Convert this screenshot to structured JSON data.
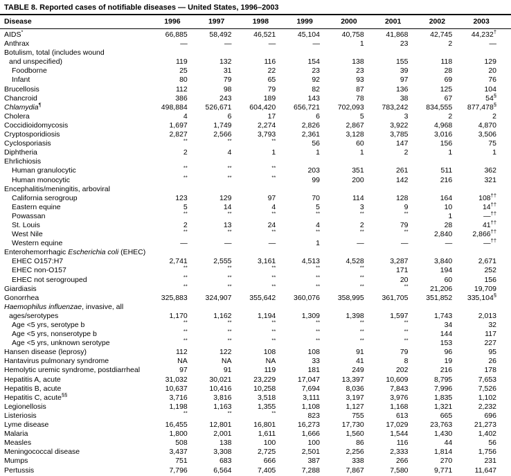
{
  "table": {
    "title": "TABLE 8. Reported cases of notifiable diseases — United States, 1996–2003",
    "columns": [
      "Disease",
      "1996",
      "1997",
      "1998",
      "1999",
      "2000",
      "2001",
      "2002",
      "2003"
    ],
    "rows": [
      {
        "label": "AIDS^*^",
        "indent": 0,
        "values": [
          "66,885",
          "58,492",
          "46,521",
          "45,104",
          "40,758",
          "41,868",
          "42,745",
          "44,232^†^"
        ]
      },
      {
        "label": "Anthrax",
        "indent": 0,
        "values": [
          "—",
          "—",
          "—",
          "—",
          "1",
          "23",
          "2",
          "—"
        ]
      },
      {
        "label": "Botulism, total (includes wound",
        "indent": 0,
        "values": []
      },
      {
        "label": "and unspecified)",
        "indent": 1,
        "values": [
          "119",
          "132",
          "116",
          "154",
          "138",
          "155",
          "118",
          "129"
        ]
      },
      {
        "label": "Foodborne",
        "indent": 2,
        "values": [
          "25",
          "31",
          "22",
          "23",
          "23",
          "39",
          "28",
          "20"
        ]
      },
      {
        "label": "Infant",
        "indent": 2,
        "values": [
          "80",
          "79",
          "65",
          "92",
          "93",
          "97",
          "69",
          "76"
        ]
      },
      {
        "label": "Brucellosis",
        "indent": 0,
        "values": [
          "112",
          "98",
          "79",
          "82",
          "87",
          "136",
          "125",
          "104"
        ]
      },
      {
        "label": "Chancroid",
        "indent": 0,
        "values": [
          "386",
          "243",
          "189",
          "143",
          "78",
          "38",
          "67",
          "54^§^"
        ]
      },
      {
        "label": "_Chlamydia_^¶^",
        "indent": 0,
        "values": [
          "498,884",
          "526,671",
          "604,420",
          "656,721",
          "702,093",
          "783,242",
          "834,555",
          "877,478^§^"
        ]
      },
      {
        "label": "Cholera",
        "indent": 0,
        "values": [
          "4",
          "6",
          "17",
          "6",
          "5",
          "3",
          "2",
          "2"
        ]
      },
      {
        "label": "Coccidioidomycosis",
        "indent": 0,
        "values": [
          "1,697",
          "1,749",
          "2,274",
          "2,826",
          "2,867",
          "3,922",
          "4,968",
          "4,870"
        ]
      },
      {
        "label": "Cryptosporidiosis",
        "indent": 0,
        "values": [
          "2,827",
          "2,566",
          "3,793",
          "2,361",
          "3,128",
          "3,785",
          "3,016",
          "3,506"
        ]
      },
      {
        "label": "Cyclosporiasis",
        "indent": 0,
        "values": [
          "^**^",
          "^**^",
          "^**^",
          "56",
          "60",
          "147",
          "156",
          "75"
        ]
      },
      {
        "label": "Diphtheria",
        "indent": 0,
        "values": [
          "2",
          "4",
          "1",
          "1",
          "1",
          "2",
          "1",
          "1"
        ]
      },
      {
        "label": "Ehrlichiosis",
        "indent": 0,
        "values": []
      },
      {
        "label": "Human granulocytic",
        "indent": 2,
        "values": [
          "^**^",
          "^**^",
          "^**^",
          "203",
          "351",
          "261",
          "511",
          "362"
        ]
      },
      {
        "label": "Human monocytic",
        "indent": 2,
        "values": [
          "^**^",
          "^**^",
          "^**^",
          "99",
          "200",
          "142",
          "216",
          "321"
        ]
      },
      {
        "label": "Encephalitis/meningitis, arboviral",
        "indent": 0,
        "values": []
      },
      {
        "label": "California serogroup",
        "indent": 2,
        "values": [
          "123",
          "129",
          "97",
          "70",
          "114",
          "128",
          "164",
          "108^††^"
        ]
      },
      {
        "label": "Eastern equine",
        "indent": 2,
        "values": [
          "5",
          "14",
          "4",
          "5",
          "3",
          "9",
          "10",
          "14^††^"
        ]
      },
      {
        "label": "Powassan",
        "indent": 2,
        "values": [
          "^**^",
          "^**^",
          "^**^",
          "^**^",
          "^**^",
          "^**^",
          "1",
          "—^††^"
        ]
      },
      {
        "label": "St. Louis",
        "indent": 2,
        "values": [
          "2",
          "13",
          "24",
          "4",
          "2",
          "79",
          "28",
          "41^††^"
        ]
      },
      {
        "label": "West Nile",
        "indent": 2,
        "values": [
          "^**^",
          "^**^",
          "^**^",
          "^**^",
          "^**^",
          "^**^",
          "2,840",
          "2,866^††^"
        ]
      },
      {
        "label": "Western equine",
        "indent": 2,
        "values": [
          "—",
          "—",
          "—",
          "1",
          "—",
          "—",
          "—",
          "—^††^"
        ]
      },
      {
        "label": "Enterohemorrhagic _Escherichia coli_ (EHEC)",
        "indent": 0,
        "values": []
      },
      {
        "label": "EHEC O157:H7",
        "indent": 2,
        "values": [
          "2,741",
          "2,555",
          "3,161",
          "4,513",
          "4,528",
          "3,287",
          "3,840",
          "2,671"
        ]
      },
      {
        "label": "EHEC non-O157",
        "indent": 2,
        "values": [
          "^**^",
          "^**^",
          "^**^",
          "^**^",
          "^**^",
          "171",
          "194",
          "252"
        ]
      },
      {
        "label": "EHEC not serogrouped",
        "indent": 2,
        "values": [
          "^**^",
          "^**^",
          "^**^",
          "^**^",
          "^**^",
          "20",
          "60",
          "156"
        ]
      },
      {
        "label": "Giardiasis",
        "indent": 0,
        "values": [
          "^**^",
          "^**^",
          "^**^",
          "^**^",
          "^**^",
          "^**^",
          "21,206",
          "19,709"
        ]
      },
      {
        "label": "Gonorrhea",
        "indent": 0,
        "values": [
          "325,883",
          "324,907",
          "355,642",
          "360,076",
          "358,995",
          "361,705",
          "351,852",
          "335,104^§^"
        ]
      },
      {
        "label": "_Haemophilus influenzae_, invasive, all",
        "indent": 0,
        "values": []
      },
      {
        "label": "ages/serotypes",
        "indent": 1,
        "values": [
          "1,170",
          "1,162",
          "1,194",
          "1,309",
          "1,398",
          "1,597",
          "1,743",
          "2,013"
        ]
      },
      {
        "label": "Age <5 yrs, serotype b",
        "indent": 2,
        "values": [
          "^**^",
          "^**^",
          "^**^",
          "^**^",
          "^**^",
          "^**^",
          "34",
          "32"
        ]
      },
      {
        "label": "Age <5 yrs, nonserotype b",
        "indent": 2,
        "values": [
          "^**^",
          "^**^",
          "^**^",
          "^**^",
          "^**^",
          "^**^",
          "144",
          "117"
        ]
      },
      {
        "label": "Age <5 yrs, unknown serotype",
        "indent": 2,
        "values": [
          "^**^",
          "^**^",
          "^**^",
          "^**^",
          "^**^",
          "^**^",
          "153",
          "227"
        ]
      },
      {
        "label": "Hansen disease (leprosy)",
        "indent": 0,
        "values": [
          "112",
          "122",
          "108",
          "108",
          "91",
          "79",
          "96",
          "95"
        ]
      },
      {
        "label": "Hantavirus pulmonary syndrome",
        "indent": 0,
        "values": [
          "NA",
          "NA",
          "NA",
          "33",
          "41",
          "8",
          "19",
          "26"
        ]
      },
      {
        "label": "Hemolytic uremic syndrome, postdiarrheal",
        "indent": 0,
        "values": [
          "97",
          "91",
          "119",
          "181",
          "249",
          "202",
          "216",
          "178"
        ]
      },
      {
        "label": "Hepatitis A, acute",
        "indent": 0,
        "values": [
          "31,032",
          "30,021",
          "23,229",
          "17,047",
          "13,397",
          "10,609",
          "8,795",
          "7,653"
        ]
      },
      {
        "label": "Hepatitis B, acute",
        "indent": 0,
        "values": [
          "10,637",
          "10,416",
          "10,258",
          "7,694",
          "8,036",
          "7,843",
          "7,996",
          "7,526"
        ]
      },
      {
        "label": "Hepatitis C, acute^§§^",
        "indent": 0,
        "values": [
          "3,716",
          "3,816",
          "3,518",
          "3,111",
          "3,197",
          "3,976",
          "1,835",
          "1,102"
        ]
      },
      {
        "label": "Legionellosis",
        "indent": 0,
        "values": [
          "1,198",
          "1,163",
          "1,355",
          "1,108",
          "1,127",
          "1,168",
          "1,321",
          "2,232"
        ]
      },
      {
        "label": "Listeriosis",
        "indent": 0,
        "values": [
          "^**^",
          "^**^",
          "^**^",
          "823",
          "755",
          "613",
          "665",
          "696"
        ]
      },
      {
        "label": "Lyme disease",
        "indent": 0,
        "values": [
          "16,455",
          "12,801",
          "16,801",
          "16,273",
          "17,730",
          "17,029",
          "23,763",
          "21,273"
        ]
      },
      {
        "label": "Malaria",
        "indent": 0,
        "values": [
          "1,800",
          "2,001",
          "1,611",
          "1,666",
          "1,560",
          "1,544",
          "1,430",
          "1,402"
        ]
      },
      {
        "label": "Measles",
        "indent": 0,
        "values": [
          "508",
          "138",
          "100",
          "100",
          "86",
          "116",
          "44",
          "56"
        ]
      },
      {
        "label": "Meningococcal disease",
        "indent": 0,
        "values": [
          "3,437",
          "3,308",
          "2,725",
          "2,501",
          "2,256",
          "2,333",
          "1,814",
          "1,756"
        ]
      },
      {
        "label": "Mumps",
        "indent": 0,
        "values": [
          "751",
          "683",
          "666",
          "387",
          "338",
          "266",
          "270",
          "231"
        ]
      },
      {
        "label": "Pertussis",
        "indent": 0,
        "values": [
          "7,796",
          "6,564",
          "7,405",
          "7,288",
          "7,867",
          "7,580",
          "9,771",
          "11,647"
        ]
      }
    ]
  }
}
